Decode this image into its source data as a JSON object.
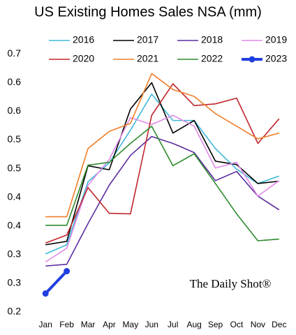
{
  "chart_data": {
    "type": "line",
    "title": "US Existing Homes Sales NSA (mm)",
    "categories": [
      "Jan",
      "Feb",
      "Mar",
      "Apr",
      "May",
      "Jun",
      "Jul",
      "Aug",
      "Sep",
      "Oct",
      "Nov",
      "Dec"
    ],
    "series": [
      {
        "name": "2016",
        "color": "#3fb8d8",
        "values": [
          0.301,
          0.317,
          0.427,
          0.46,
          0.517,
          0.58,
          0.534,
          0.534,
          0.485,
          0.449,
          0.424,
          0.437
        ]
      },
      {
        "name": "2017",
        "color": "#000000",
        "values": [
          0.317,
          0.323,
          0.455,
          0.448,
          0.554,
          0.6,
          0.512,
          0.534,
          0.463,
          0.457,
          0.424,
          0.428
        ]
      },
      {
        "name": "2018",
        "color": "#5b2c9e",
        "values": [
          0.28,
          0.283,
          0.354,
          0.421,
          0.473,
          0.506,
          0.494,
          0.478,
          0.429,
          0.445,
          0.402,
          0.378
        ]
      },
      {
        "name": "2019",
        "color": "#e08ae8",
        "values": [
          0.287,
          0.311,
          0.421,
          0.466,
          0.539,
          0.527,
          0.543,
          0.524,
          0.451,
          0.461,
          0.402,
          0.429
        ]
      },
      {
        "name": "2020",
        "color": "#c0262c",
        "values": [
          0.32,
          0.334,
          0.417,
          0.372,
          0.371,
          0.543,
          0.598,
          0.56,
          0.563,
          0.573,
          0.494,
          0.537
        ]
      },
      {
        "name": "2021",
        "color": "#f07f2a",
        "values": [
          0.366,
          0.366,
          0.485,
          0.515,
          0.529,
          0.616,
          0.588,
          0.576,
          0.546,
          0.524,
          0.502,
          0.512
        ]
      },
      {
        "name": "2022",
        "color": "#2e8b2e",
        "values": [
          0.351,
          0.351,
          0.456,
          0.461,
          0.494,
          0.524,
          0.455,
          0.476,
          0.424,
          0.371,
          0.324,
          0.327
        ]
      },
      {
        "name": "2023",
        "color": "#1f3fe0",
        "values": [
          0.232,
          0.271,
          null,
          null,
          null,
          null,
          null,
          null,
          null,
          null,
          null,
          null
        ]
      }
    ],
    "ylim": [
      0.19,
      0.67
    ],
    "yticks": [
      0.2,
      {
        "value": 0.25,
        "label": "0.3"
      },
      0.3,
      {
        "value": 0.35,
        "label": "0.4"
      },
      0.4,
      {
        "value": 0.45,
        "label": "0.5"
      },
      0.5,
      {
        "value": 0.55,
        "label": "0.6"
      },
      0.6,
      {
        "value": 0.65,
        "label": "0.7"
      }
    ],
    "grid": false,
    "annotation": "The Daily Shot®"
  }
}
